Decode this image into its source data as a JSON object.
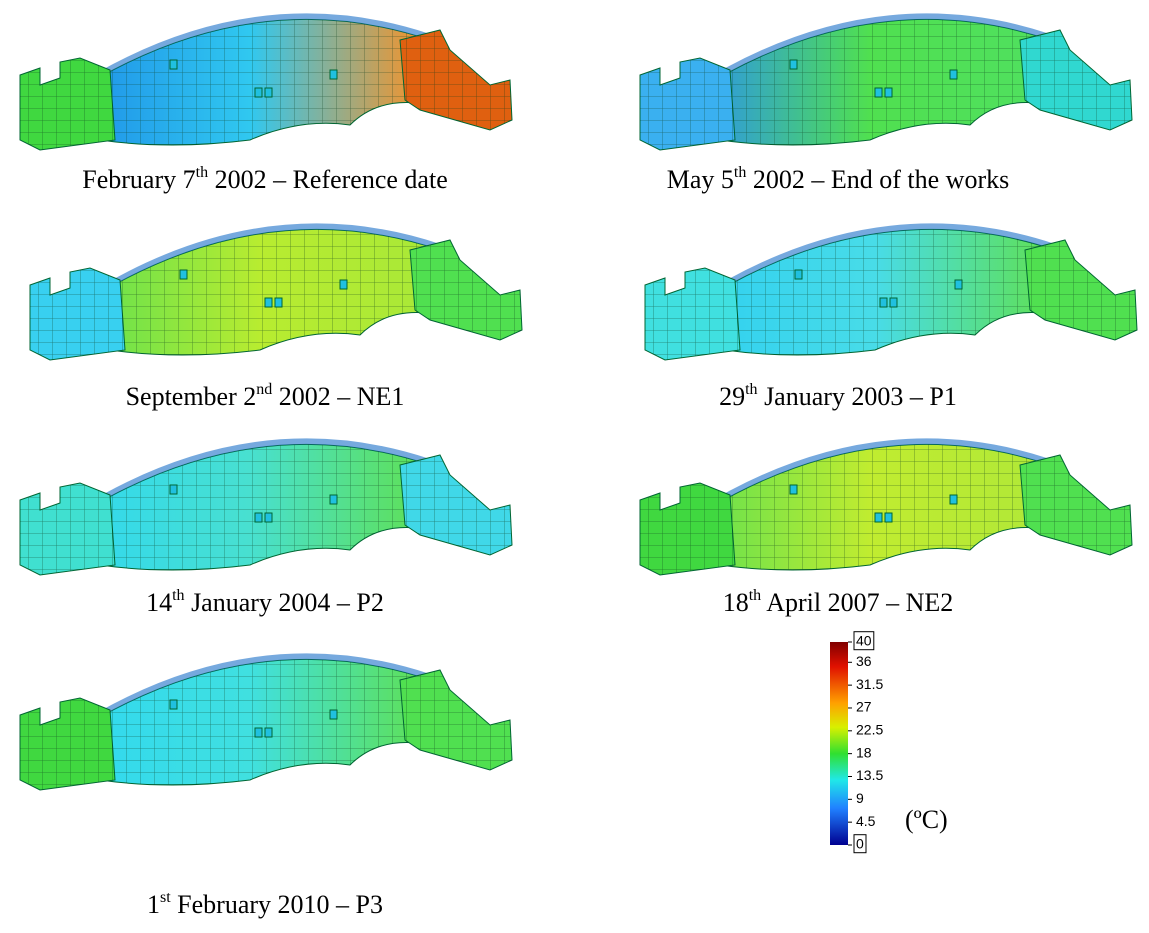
{
  "panels": [
    {
      "caption": {
        "before": "February 7",
        "sup": "th",
        "after": " 2002 – Reference date"
      }
    },
    {
      "caption": {
        "before": "May 5",
        "sup": "th",
        "after": " 2002 – End of the works"
      }
    },
    {
      "caption": {
        "before": "September 2",
        "sup": "nd",
        "after": " 2002 – NE1"
      }
    },
    {
      "caption": {
        "before": "29",
        "sup": "th",
        "after": " January 2003 – P1"
      }
    },
    {
      "caption": {
        "before": "14",
        "sup": "th",
        "after": " January 2004 – P2"
      }
    },
    {
      "caption": {
        "before": "18",
        "sup": "th",
        "after": " April 2007 – NE2"
      }
    },
    {
      "caption": {
        "before": "1",
        "sup": "st",
        "after": " February 2010 – P3"
      }
    }
  ],
  "colorbar": {
    "range": [
      0,
      40
    ],
    "ticks": [
      40,
      36,
      31.5,
      27,
      22.5,
      18,
      13.5,
      9,
      4.5,
      0
    ],
    "boxed": [
      40,
      0
    ],
    "unit": "(ºC)"
  }
}
